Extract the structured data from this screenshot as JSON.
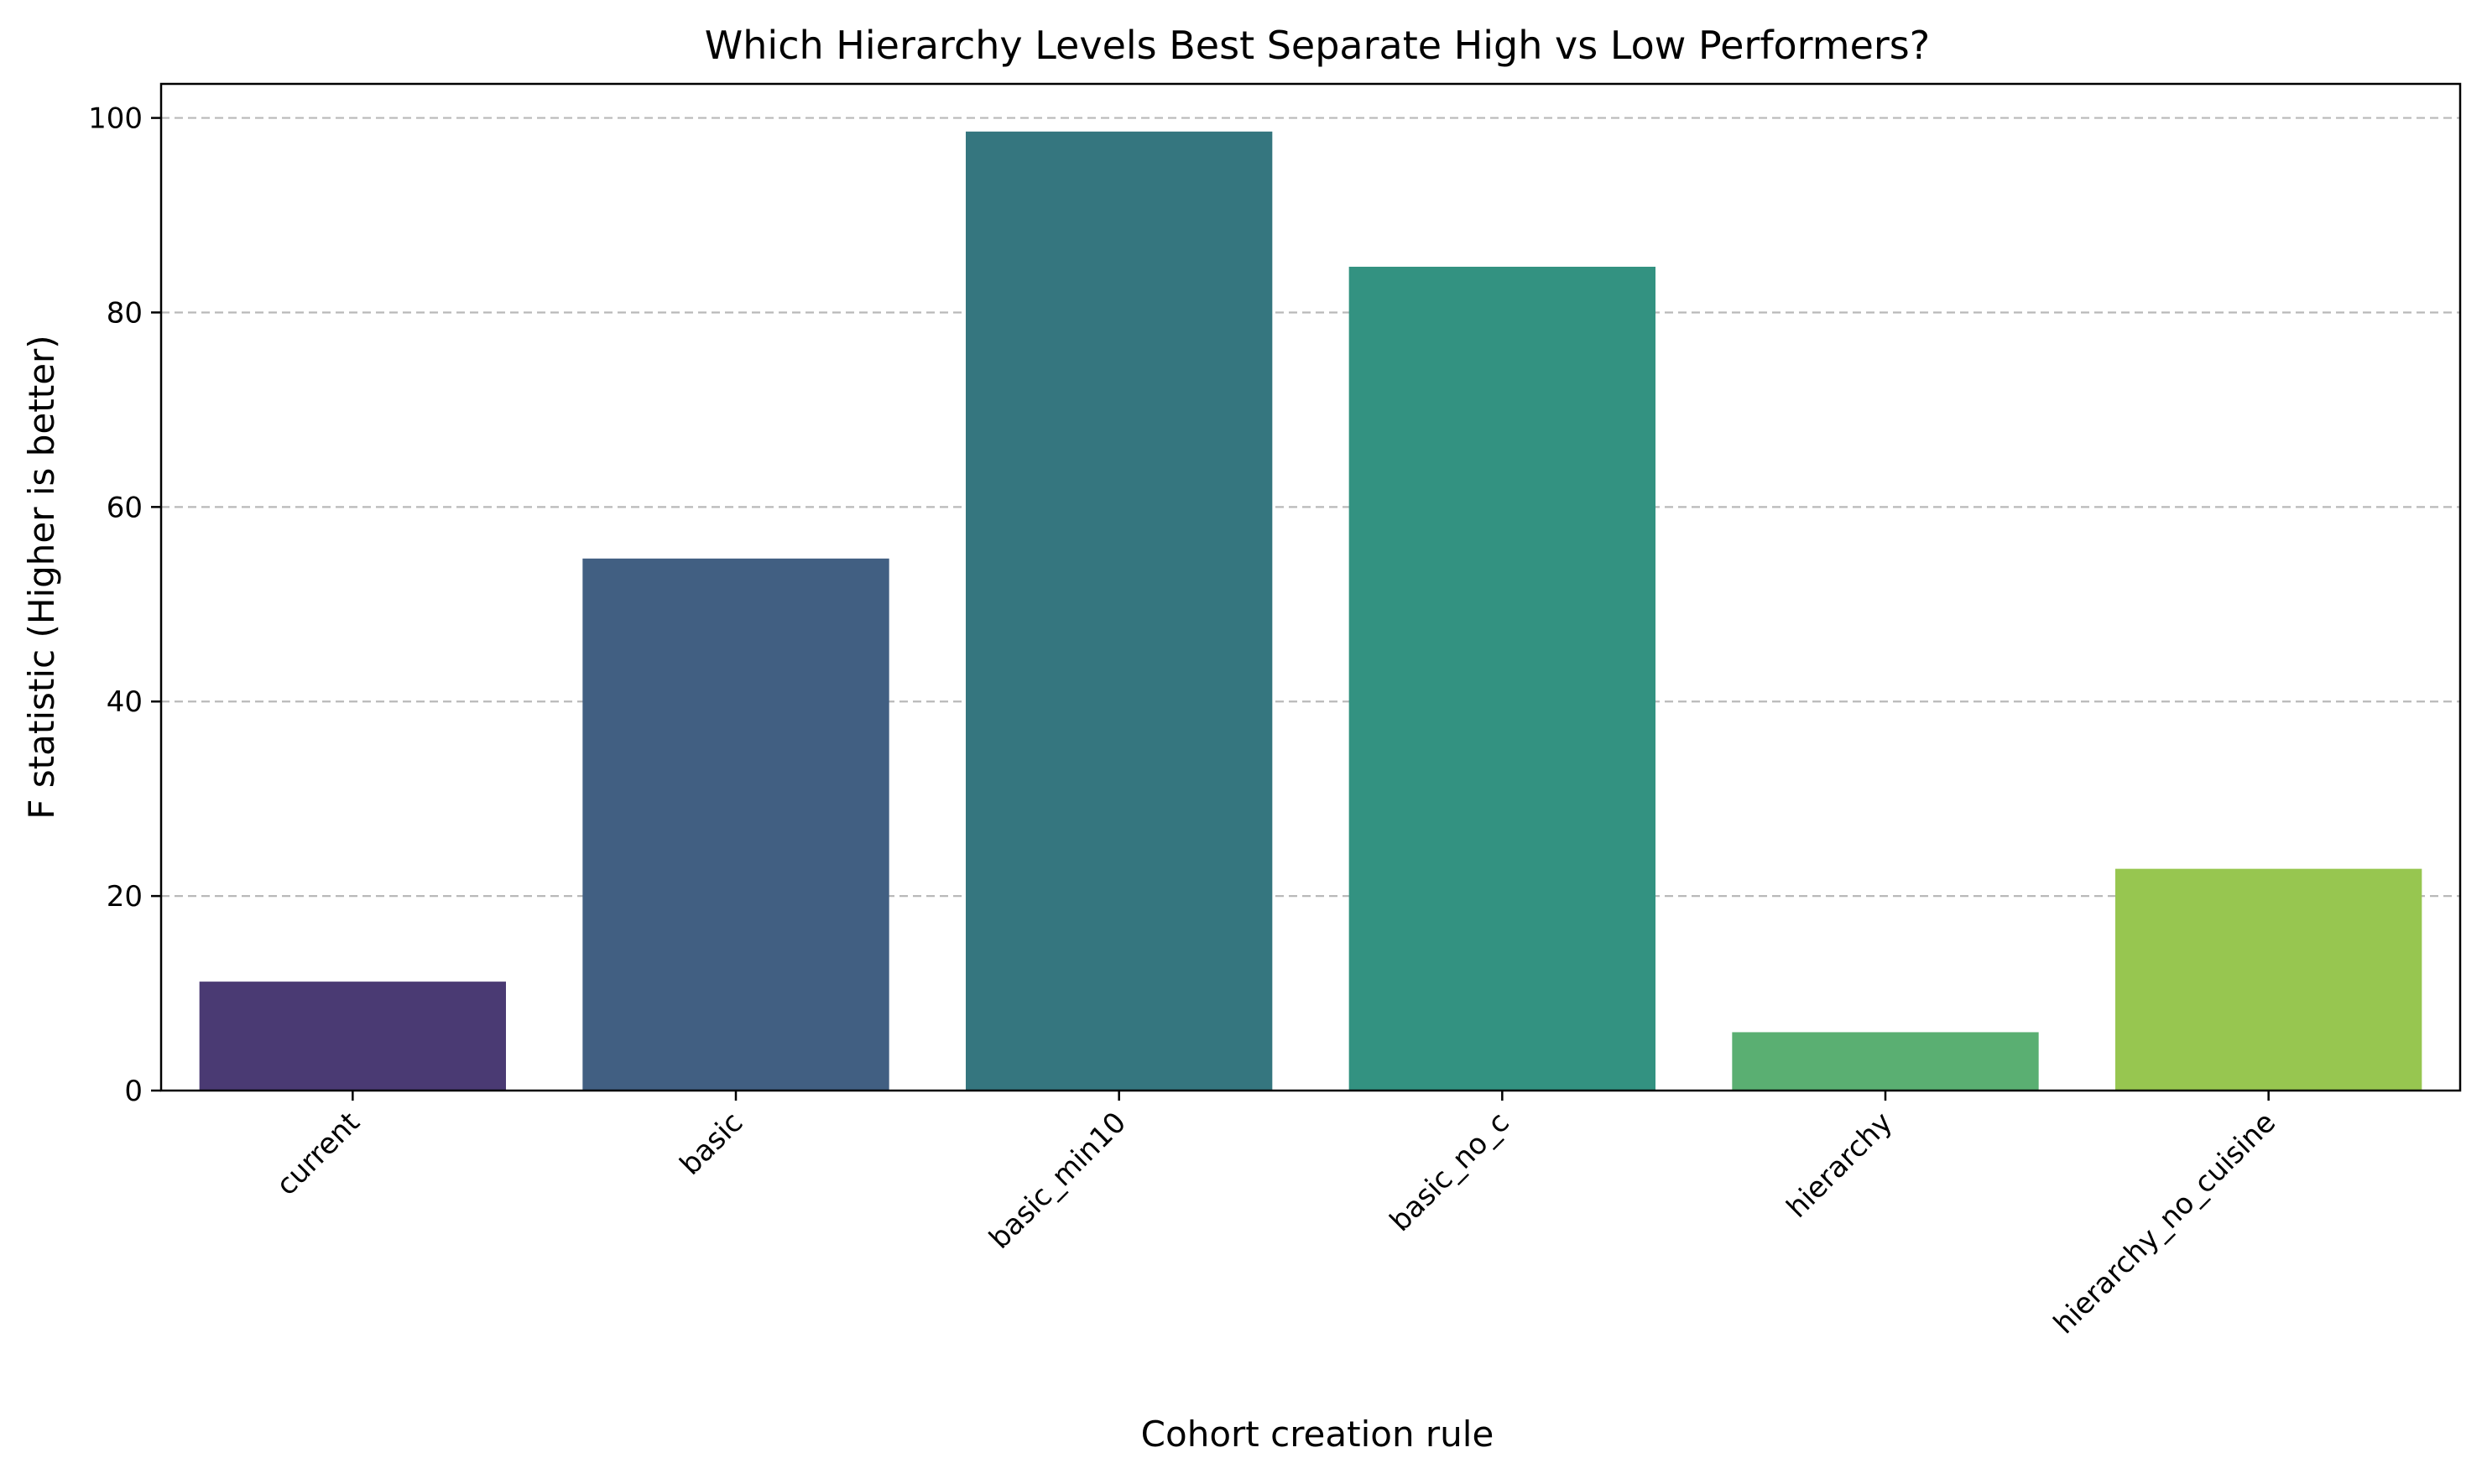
{
  "chart_data": {
    "type": "bar",
    "title": "Which Hierarchy Levels Best Separate High vs Low Performers?",
    "xlabel": "Cohort creation rule",
    "ylabel": "F statistic (Higher is better)",
    "categories": [
      "current",
      "basic",
      "basic_min10",
      "basic_no_c",
      "hierarchy",
      "hierarchy_no_cuisine"
    ],
    "values": [
      11.2,
      54.7,
      98.6,
      84.7,
      6.0,
      22.8
    ],
    "colors": [
      "#4a3a73",
      "#415f82",
      "#35767f",
      "#339281",
      "#5aaf72",
      "#97c650"
    ],
    "ylim": [
      0,
      103.5
    ],
    "yticks": [
      0,
      20,
      40,
      60,
      80,
      100
    ],
    "grid": "y-dashed",
    "legend": "none"
  }
}
